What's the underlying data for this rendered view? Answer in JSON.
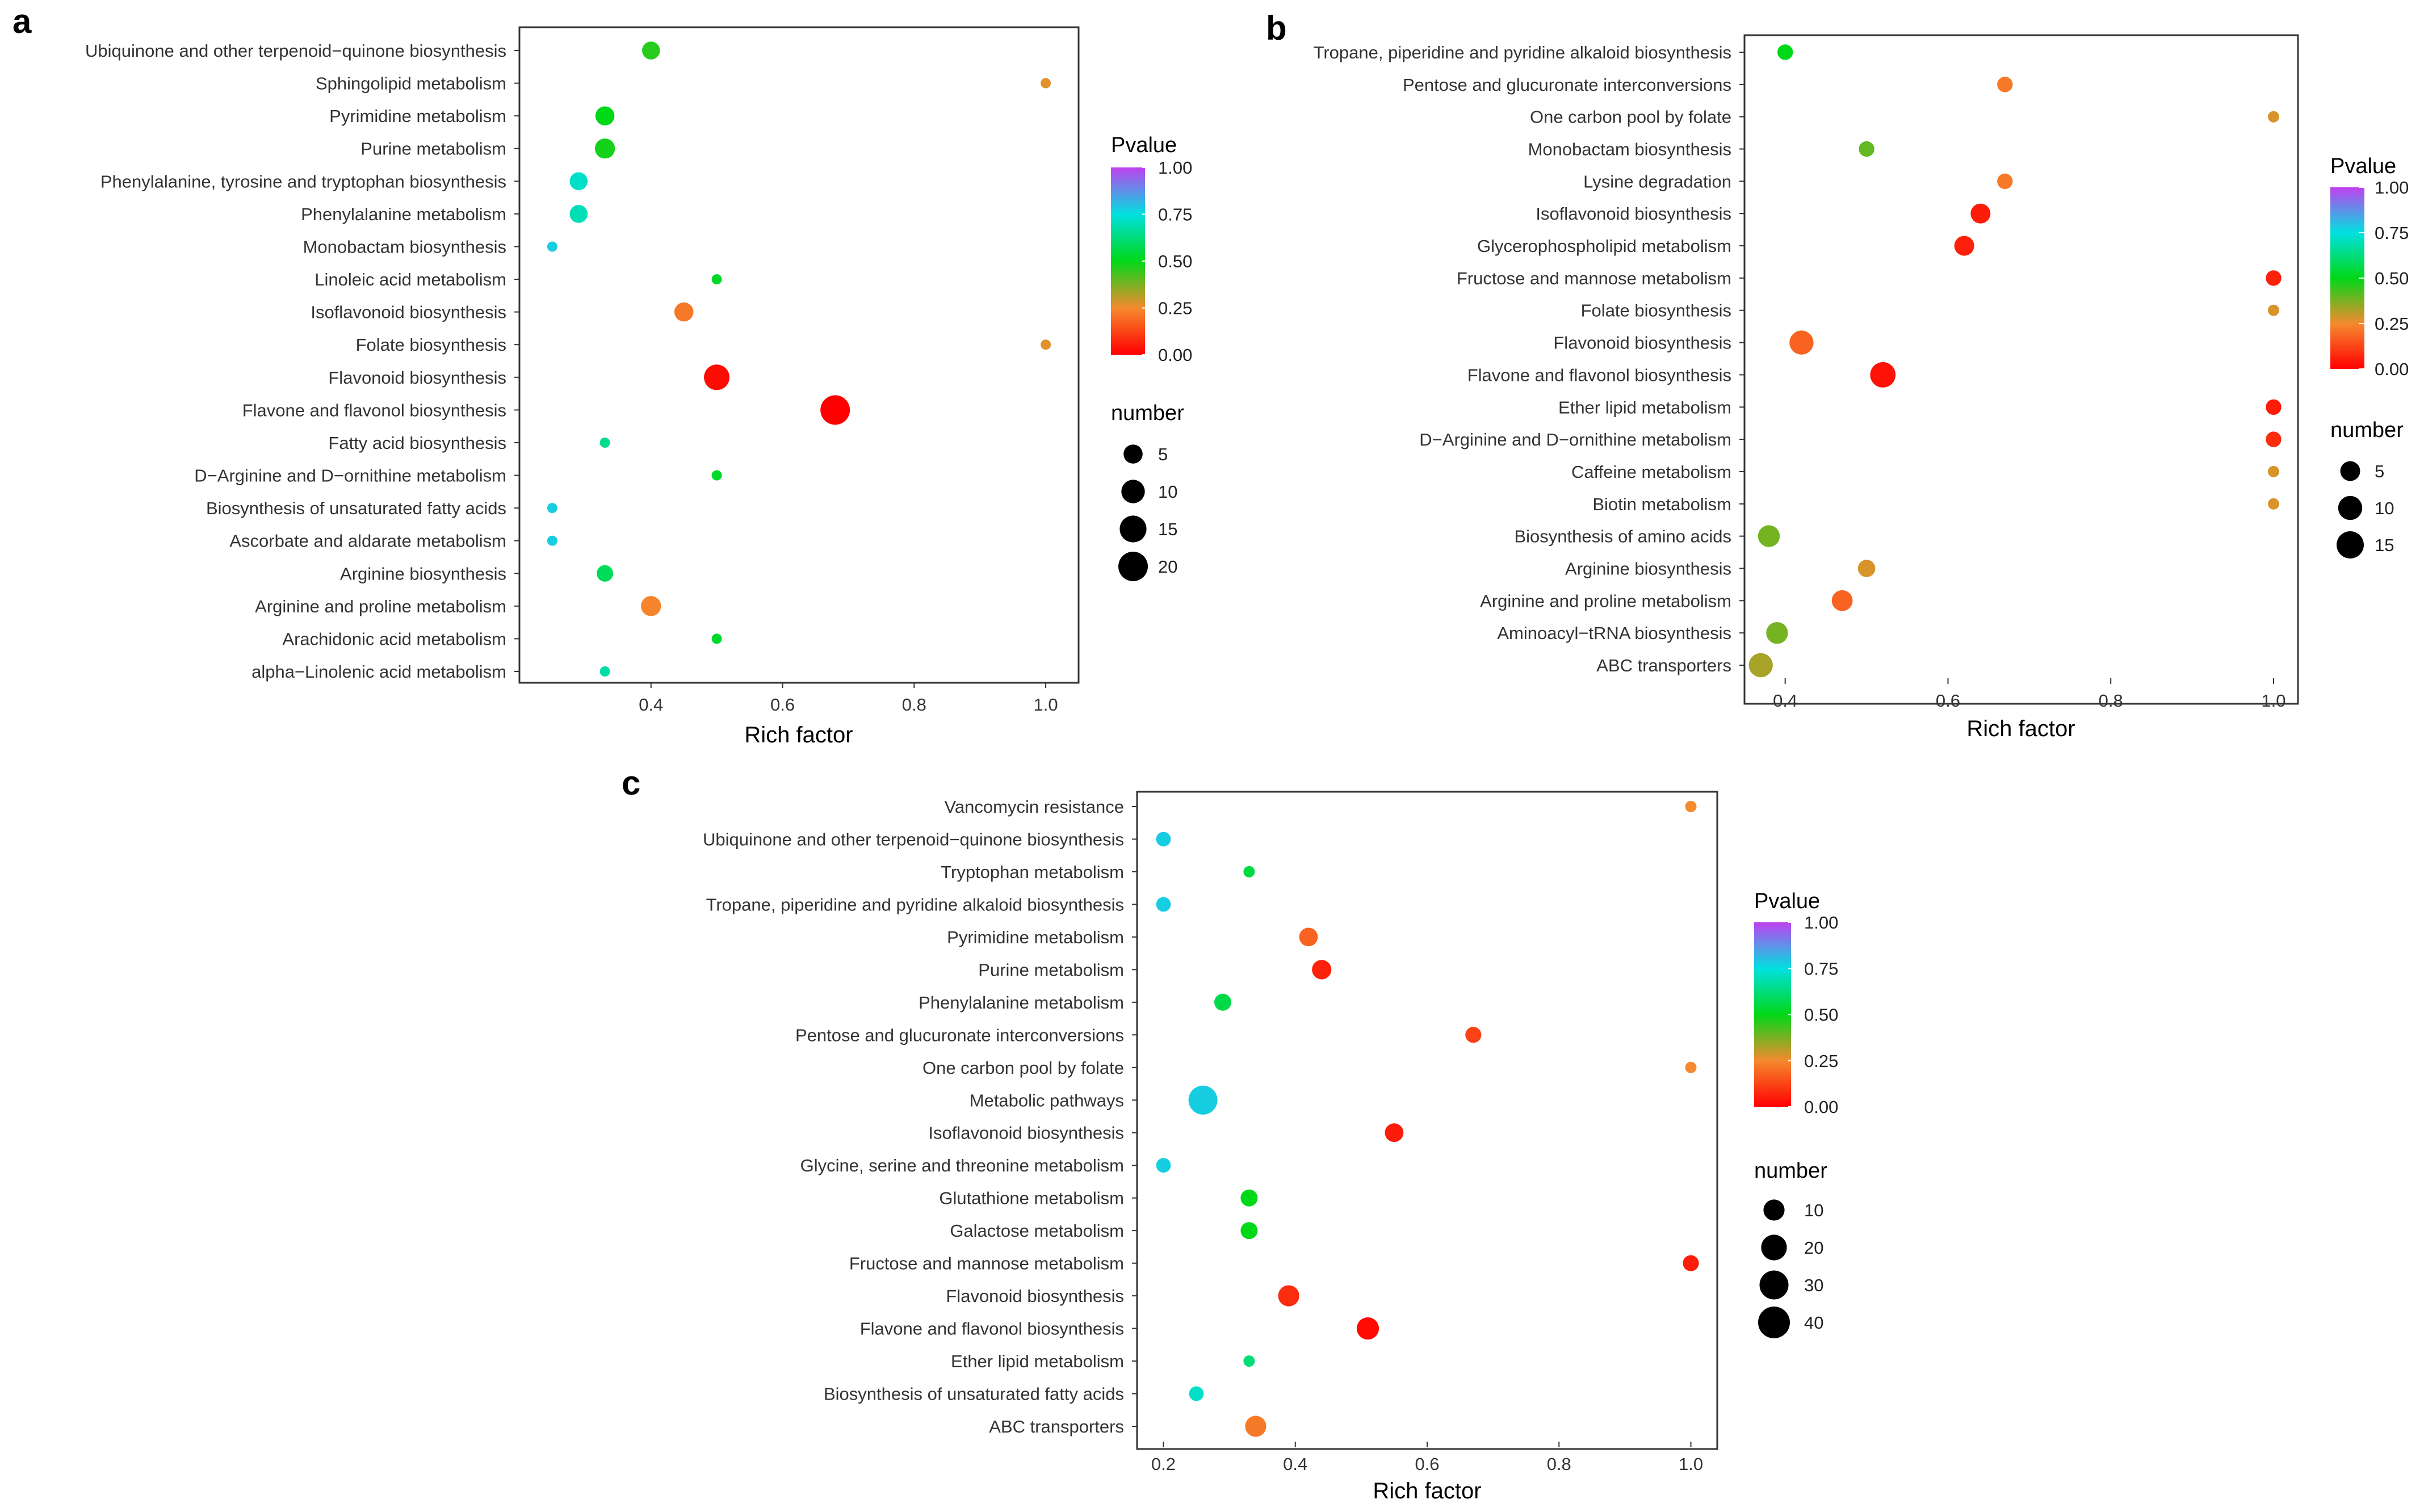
{
  "colors": {
    "pvalue_gradient": [
      "#ff0000",
      "#f58a2e",
      "#00d817",
      "#00e4e4",
      "#b04bff"
    ],
    "size_legend_fill": "#000000"
  },
  "chart_data": [
    {
      "panel": "a",
      "type": "scatter",
      "xlabel": "Rich factor",
      "ylabel": "",
      "xlim": [
        0.2,
        1.05
      ],
      "xticks": [
        0.4,
        0.6,
        0.8,
        1.0
      ],
      "xtick_labels": [
        "0.4",
        "0.6",
        "0.8",
        "1.0"
      ],
      "grid": false,
      "color_legend": {
        "title": "Pvalue",
        "labels": [
          "1.00",
          "0.75",
          "0.50",
          "0.25",
          "0.00"
        ],
        "values": [
          1.0,
          0.75,
          0.5,
          0.25,
          0.0
        ]
      },
      "size_legend": {
        "title": "number",
        "labels": [
          "5",
          "10",
          "15",
          "20"
        ],
        "values": [
          5,
          10,
          15,
          20
        ],
        "min": 1,
        "max": 20
      },
      "categories": [
        "Ubiquinone and other terpenoid−quinone biosynthesis",
        "Sphingolipid metabolism",
        "Pyrimidine metabolism",
        "Purine metabolism",
        "Phenylalanine, tyrosine and tryptophan biosynthesis",
        "Phenylalanine metabolism",
        "Monobactam biosynthesis",
        "Linoleic acid metabolism",
        "Isoflavonoid biosynthesis",
        "Folate biosynthesis",
        "Flavonoid biosynthesis",
        "Flavone and flavonol biosynthesis",
        "Fatty acid biosynthesis",
        "D−Arginine and D−ornithine metabolism",
        "Biosynthesis of unsaturated fatty acids",
        "Ascorbate and aldarate metabolism",
        "Arginine biosynthesis",
        "Arginine and proline metabolism",
        "Arachidonic acid metabolism",
        "alpha−Linolenic acid metabolism"
      ],
      "points": [
        {
          "rich": 0.4,
          "pvalue": 0.46,
          "number": 4
        },
        {
          "rich": 1.0,
          "pvalue": 0.27,
          "number": 1
        },
        {
          "rich": 0.33,
          "pvalue": 0.5,
          "number": 5
        },
        {
          "rich": 0.33,
          "pvalue": 0.48,
          "number": 6
        },
        {
          "rich": 0.29,
          "pvalue": 0.72,
          "number": 4
        },
        {
          "rich": 0.29,
          "pvalue": 0.7,
          "number": 4
        },
        {
          "rich": 0.25,
          "pvalue": 0.78,
          "number": 1
        },
        {
          "rich": 0.5,
          "pvalue": 0.52,
          "number": 1
        },
        {
          "rich": 0.45,
          "pvalue": 0.22,
          "number": 5
        },
        {
          "rich": 1.0,
          "pvalue": 0.27,
          "number": 1
        },
        {
          "rich": 0.5,
          "pvalue": 0.02,
          "number": 13
        },
        {
          "rich": 0.68,
          "pvalue": 0.0,
          "number": 20
        },
        {
          "rich": 0.33,
          "pvalue": 0.64,
          "number": 1
        },
        {
          "rich": 0.5,
          "pvalue": 0.52,
          "number": 1
        },
        {
          "rich": 0.25,
          "pvalue": 0.78,
          "number": 1
        },
        {
          "rich": 0.25,
          "pvalue": 0.78,
          "number": 1
        },
        {
          "rich": 0.33,
          "pvalue": 0.58,
          "number": 3
        },
        {
          "rich": 0.4,
          "pvalue": 0.24,
          "number": 6
        },
        {
          "rich": 0.5,
          "pvalue": 0.52,
          "number": 1
        },
        {
          "rich": 0.33,
          "pvalue": 0.68,
          "number": 1
        }
      ]
    },
    {
      "panel": "b",
      "type": "scatter",
      "xlabel": "Rich factor",
      "ylabel": "",
      "xlim": [
        0.35,
        1.03
      ],
      "xticks": [
        0.4,
        0.6,
        0.8,
        1.0
      ],
      "xtick_labels": [
        "0.4",
        "0.6",
        "0.8",
        "1.0"
      ],
      "grid": false,
      "color_legend": {
        "title": "Pvalue",
        "labels": [
          "1.00",
          "0.75",
          "0.50",
          "0.25",
          "0.00"
        ],
        "values": [
          1.0,
          0.75,
          0.5,
          0.25,
          0.0
        ]
      },
      "size_legend": {
        "title": "number",
        "labels": [
          "5",
          "10",
          "15"
        ],
        "values": [
          5,
          10,
          15
        ],
        "min": 1,
        "max": 15
      },
      "categories": [
        "Tropane, piperidine and pyridine alkaloid biosynthesis",
        "Pentose and glucuronate interconversions",
        "One carbon pool by folate",
        "Monobactam biosynthesis",
        "Lysine degradation",
        "Isoflavonoid biosynthesis",
        "Glycerophospholipid metabolism",
        "Fructose and mannose metabolism",
        "Folate biosynthesis",
        "Flavonoid biosynthesis",
        "Flavone and flavonol biosynthesis",
        "Ether lipid metabolism",
        "D−Arginine and D−ornithine metabolism",
        "Caffeine metabolism",
        "Biotin metabolism",
        "Biosynthesis of amino acids",
        "Arginine biosynthesis",
        "Arginine and proline metabolism",
        "Aminoacyl−tRNA biosynthesis",
        "ABC transporters"
      ],
      "points": [
        {
          "rich": 0.4,
          "pvalue": 0.5,
          "number": 2
        },
        {
          "rich": 0.67,
          "pvalue": 0.22,
          "number": 2
        },
        {
          "rich": 1.0,
          "pvalue": 0.28,
          "number": 1
        },
        {
          "rich": 0.5,
          "pvalue": 0.4,
          "number": 2
        },
        {
          "rich": 0.67,
          "pvalue": 0.22,
          "number": 2
        },
        {
          "rich": 0.64,
          "pvalue": 0.05,
          "number": 5
        },
        {
          "rich": 0.62,
          "pvalue": 0.06,
          "number": 5
        },
        {
          "rich": 1.0,
          "pvalue": 0.06,
          "number": 2
        },
        {
          "rich": 1.0,
          "pvalue": 0.28,
          "number": 1
        },
        {
          "rich": 0.42,
          "pvalue": 0.18,
          "number": 10
        },
        {
          "rich": 0.52,
          "pvalue": 0.03,
          "number": 12
        },
        {
          "rich": 1.0,
          "pvalue": 0.05,
          "number": 2
        },
        {
          "rich": 1.0,
          "pvalue": 0.08,
          "number": 2
        },
        {
          "rich": 1.0,
          "pvalue": 0.28,
          "number": 1
        },
        {
          "rich": 1.0,
          "pvalue": 0.28,
          "number": 1
        },
        {
          "rich": 0.38,
          "pvalue": 0.38,
          "number": 7
        },
        {
          "rich": 0.5,
          "pvalue": 0.28,
          "number": 3
        },
        {
          "rich": 0.47,
          "pvalue": 0.18,
          "number": 6
        },
        {
          "rich": 0.39,
          "pvalue": 0.38,
          "number": 7
        },
        {
          "rich": 0.37,
          "pvalue": 0.33,
          "number": 10
        }
      ]
    },
    {
      "panel": "c",
      "type": "scatter",
      "xlabel": "Rich factor",
      "ylabel": "",
      "xlim": [
        0.16,
        1.04
      ],
      "xticks": [
        0.2,
        0.4,
        0.6,
        0.8,
        1.0
      ],
      "xtick_labels": [
        "0.2",
        "0.4",
        "0.6",
        "0.8",
        "1.0"
      ],
      "grid": false,
      "color_legend": {
        "title": "Pvalue",
        "labels": [
          "1.00",
          "0.75",
          "0.50",
          "0.25",
          "0.00"
        ],
        "values": [
          1.0,
          0.75,
          0.5,
          0.25,
          0.0
        ]
      },
      "size_legend": {
        "title": "number",
        "labels": [
          "10",
          "20",
          "30",
          "40"
        ],
        "values": [
          10,
          20,
          30,
          40
        ],
        "min": 1,
        "max": 40
      },
      "categories": [
        "Vancomycin resistance",
        "Ubiquinone and other terpenoid−quinone biosynthesis",
        "Tryptophan metabolism",
        "Tropane, piperidine and pyridine alkaloid biosynthesis",
        "Pyrimidine metabolism",
        "Purine metabolism",
        "Phenylalanine metabolism",
        "Pentose and glucuronate interconversions",
        "One carbon pool by folate",
        "Metabolic pathways",
        "Isoflavonoid biosynthesis",
        "Glycine, serine and threonine metabolism",
        "Glutathione metabolism",
        "Galactose metabolism",
        "Fructose and mannose metabolism",
        "Flavonoid biosynthesis",
        "Flavone and flavonol biosynthesis",
        "Ether lipid metabolism",
        "Biosynthesis of unsaturated fatty acids",
        "ABC transporters"
      ],
      "points": [
        {
          "rich": 1.0,
          "pvalue": 0.25,
          "number": 1
        },
        {
          "rich": 0.2,
          "pvalue": 0.78,
          "number": 2
        },
        {
          "rich": 0.33,
          "pvalue": 0.55,
          "number": 1
        },
        {
          "rich": 0.2,
          "pvalue": 0.78,
          "number": 2
        },
        {
          "rich": 0.42,
          "pvalue": 0.18,
          "number": 6
        },
        {
          "rich": 0.44,
          "pvalue": 0.06,
          "number": 7
        },
        {
          "rich": 0.29,
          "pvalue": 0.56,
          "number": 4
        },
        {
          "rich": 0.67,
          "pvalue": 0.12,
          "number": 3
        },
        {
          "rich": 1.0,
          "pvalue": 0.25,
          "number": 1
        },
        {
          "rich": 0.26,
          "pvalue": 0.78,
          "number": 30
        },
        {
          "rich": 0.55,
          "pvalue": 0.05,
          "number": 6
        },
        {
          "rich": 0.2,
          "pvalue": 0.78,
          "number": 2
        },
        {
          "rich": 0.33,
          "pvalue": 0.5,
          "number": 4
        },
        {
          "rich": 0.33,
          "pvalue": 0.5,
          "number": 4
        },
        {
          "rich": 1.0,
          "pvalue": 0.05,
          "number": 3
        },
        {
          "rich": 0.39,
          "pvalue": 0.08,
          "number": 10
        },
        {
          "rich": 0.51,
          "pvalue": 0.02,
          "number": 12
        },
        {
          "rich": 0.33,
          "pvalue": 0.62,
          "number": 1
        },
        {
          "rich": 0.25,
          "pvalue": 0.72,
          "number": 2
        },
        {
          "rich": 0.34,
          "pvalue": 0.22,
          "number": 10
        }
      ]
    }
  ]
}
